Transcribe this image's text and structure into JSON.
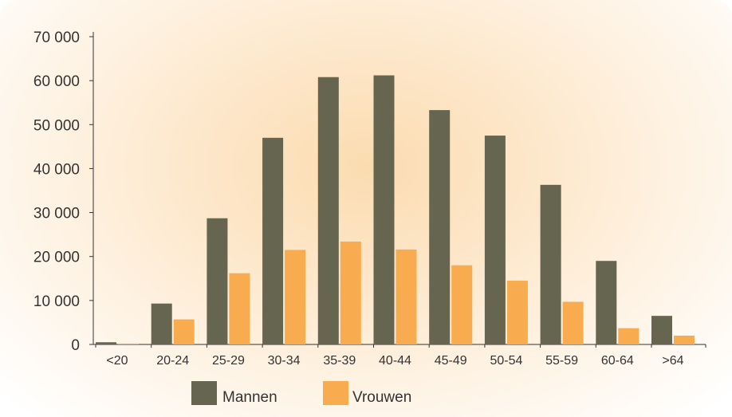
{
  "chart_data": {
    "type": "bar",
    "title": "",
    "xlabel": "",
    "ylabel": "",
    "categories": [
      "<20",
      "20-24",
      "25-29",
      "30-34",
      "35-39",
      "40-44",
      "45-49",
      "50-54",
      "55-59",
      "60-64",
      ">64"
    ],
    "series": [
      {
        "name": "Mannen",
        "color": "#66654f",
        "values": [
          500,
          9300,
          28700,
          47000,
          60800,
          61200,
          53300,
          47500,
          36300,
          19000,
          6500
        ]
      },
      {
        "name": "Vrouwen",
        "color": "#f9ab4f",
        "values": [
          200,
          5700,
          16200,
          21500,
          23400,
          21600,
          18000,
          14500,
          9700,
          3700,
          2000
        ]
      }
    ],
    "ylim": [
      0,
      70000
    ],
    "yticks": [
      0,
      10000,
      20000,
      30000,
      40000,
      50000,
      60000,
      70000
    ],
    "ytick_labels": [
      "0",
      "10 000",
      "20 000",
      "30 000",
      "40 000",
      "50 000",
      "60 000",
      "70 000"
    ],
    "grid": false,
    "legend_position": "bottom"
  }
}
